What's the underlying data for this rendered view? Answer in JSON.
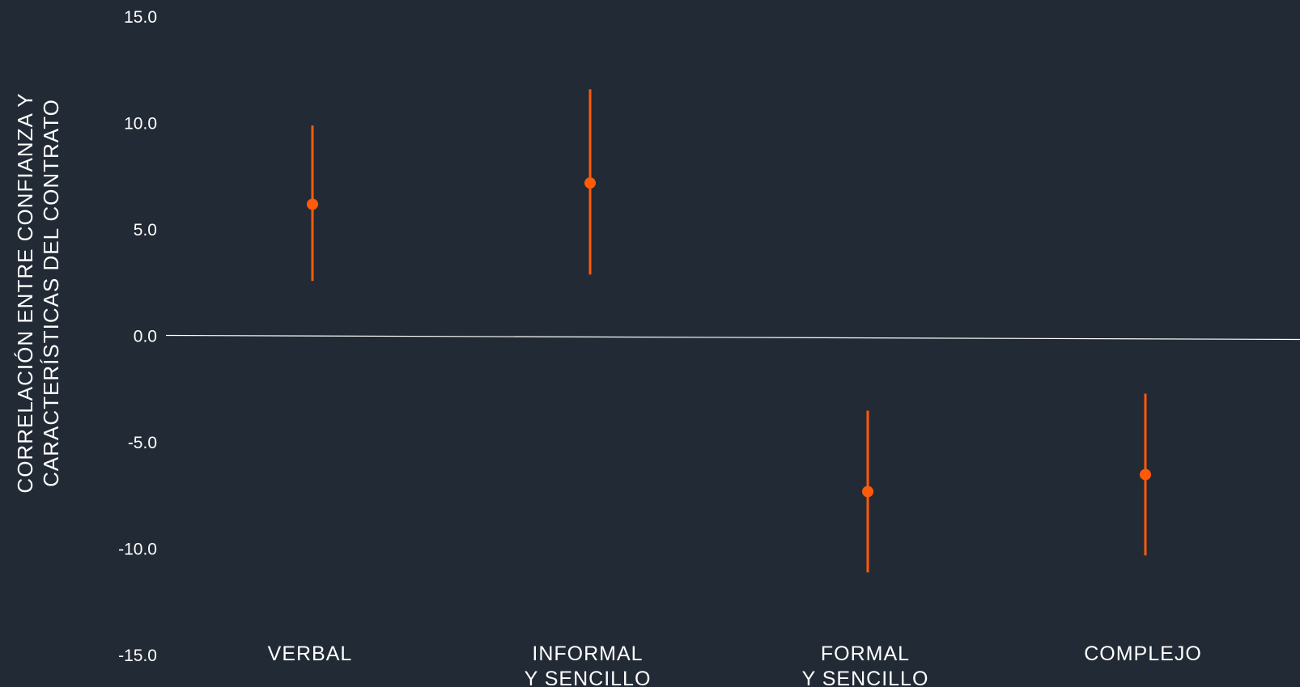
{
  "chart_data": {
    "type": "scatter",
    "title": "",
    "xlabel": "",
    "ylabel_lines": [
      "CORRELACIÓN ENTRE CONFIANZA Y",
      "CARACTERÍSTICAS DEL CONTRATO"
    ],
    "ylim": [
      -15,
      15
    ],
    "yticks": [
      "15.0",
      "10.0",
      "5.0",
      "0.0",
      "-5.0",
      "-10.0",
      "-15.0"
    ],
    "ytick_values": [
      15,
      10,
      5,
      0,
      -5,
      -10,
      -15
    ],
    "grid": false,
    "legend": "none",
    "point_color": "#ff5a0a",
    "zero_line_color": "#ffffff",
    "categories": [
      {
        "label_lines": [
          "VERBAL"
        ],
        "value": 6.2,
        "ci_low": 2.6,
        "ci_high": 9.9
      },
      {
        "label_lines": [
          "INFORMAL",
          "Y SENCILLO"
        ],
        "value": 7.2,
        "ci_low": 2.9,
        "ci_high": 11.6
      },
      {
        "label_lines": [
          "FORMAL",
          "Y SENCILLO"
        ],
        "value": -7.3,
        "ci_low": -11.1,
        "ci_high": -3.5
      },
      {
        "label_lines": [
          "COMPLEJO"
        ],
        "value": -6.5,
        "ci_low": -10.3,
        "ci_high": -2.7
      }
    ]
  }
}
